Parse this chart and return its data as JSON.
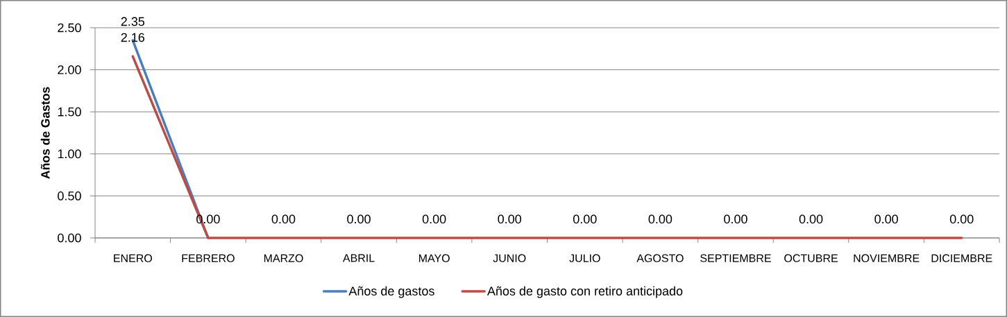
{
  "chart_data": {
    "type": "line",
    "ylabel": "Años de Gastos",
    "categories": [
      "ENERO",
      "FEBRERO",
      "MARZO",
      "ABRIL",
      "MAYO",
      "JUNIO",
      "JULIO",
      "AGOSTO",
      "SEPTIEMBRE",
      "OCTUBRE",
      "NOVIEMBRE",
      "DICIEMBRE"
    ],
    "series": [
      {
        "name": "Años de gastos",
        "color": "#4a7ebb",
        "values": [
          2.35,
          0,
          null,
          null,
          null,
          null,
          null,
          null,
          null,
          null,
          null,
          null
        ],
        "value_labels": [
          "2.35",
          null,
          null,
          null,
          null,
          null,
          null,
          null,
          null,
          null,
          null,
          null
        ]
      },
      {
        "name": "Años de gasto con retiro anticipado",
        "color": "#be4b48",
        "values": [
          2.16,
          0,
          0,
          0,
          0,
          0,
          0,
          0,
          0,
          0,
          0,
          0
        ],
        "value_labels": [
          "2.16",
          "0.00",
          "0.00",
          "0.00",
          "0.00",
          "0.00",
          "0.00",
          "0.00",
          "0.00",
          "0.00",
          "0.00",
          "0.00"
        ]
      }
    ],
    "ylim": [
      0,
      2.5
    ],
    "yticks": [
      {
        "value": 0,
        "label": "0.00"
      },
      {
        "value": 0.5,
        "label": "0.50"
      },
      {
        "value": 1,
        "label": "1.00"
      },
      {
        "value": 1.5,
        "label": "1.50"
      },
      {
        "value": 2,
        "label": "2.00"
      },
      {
        "value": 2.5,
        "label": "2.50"
      }
    ],
    "grid": "y",
    "legend": "bottom"
  }
}
